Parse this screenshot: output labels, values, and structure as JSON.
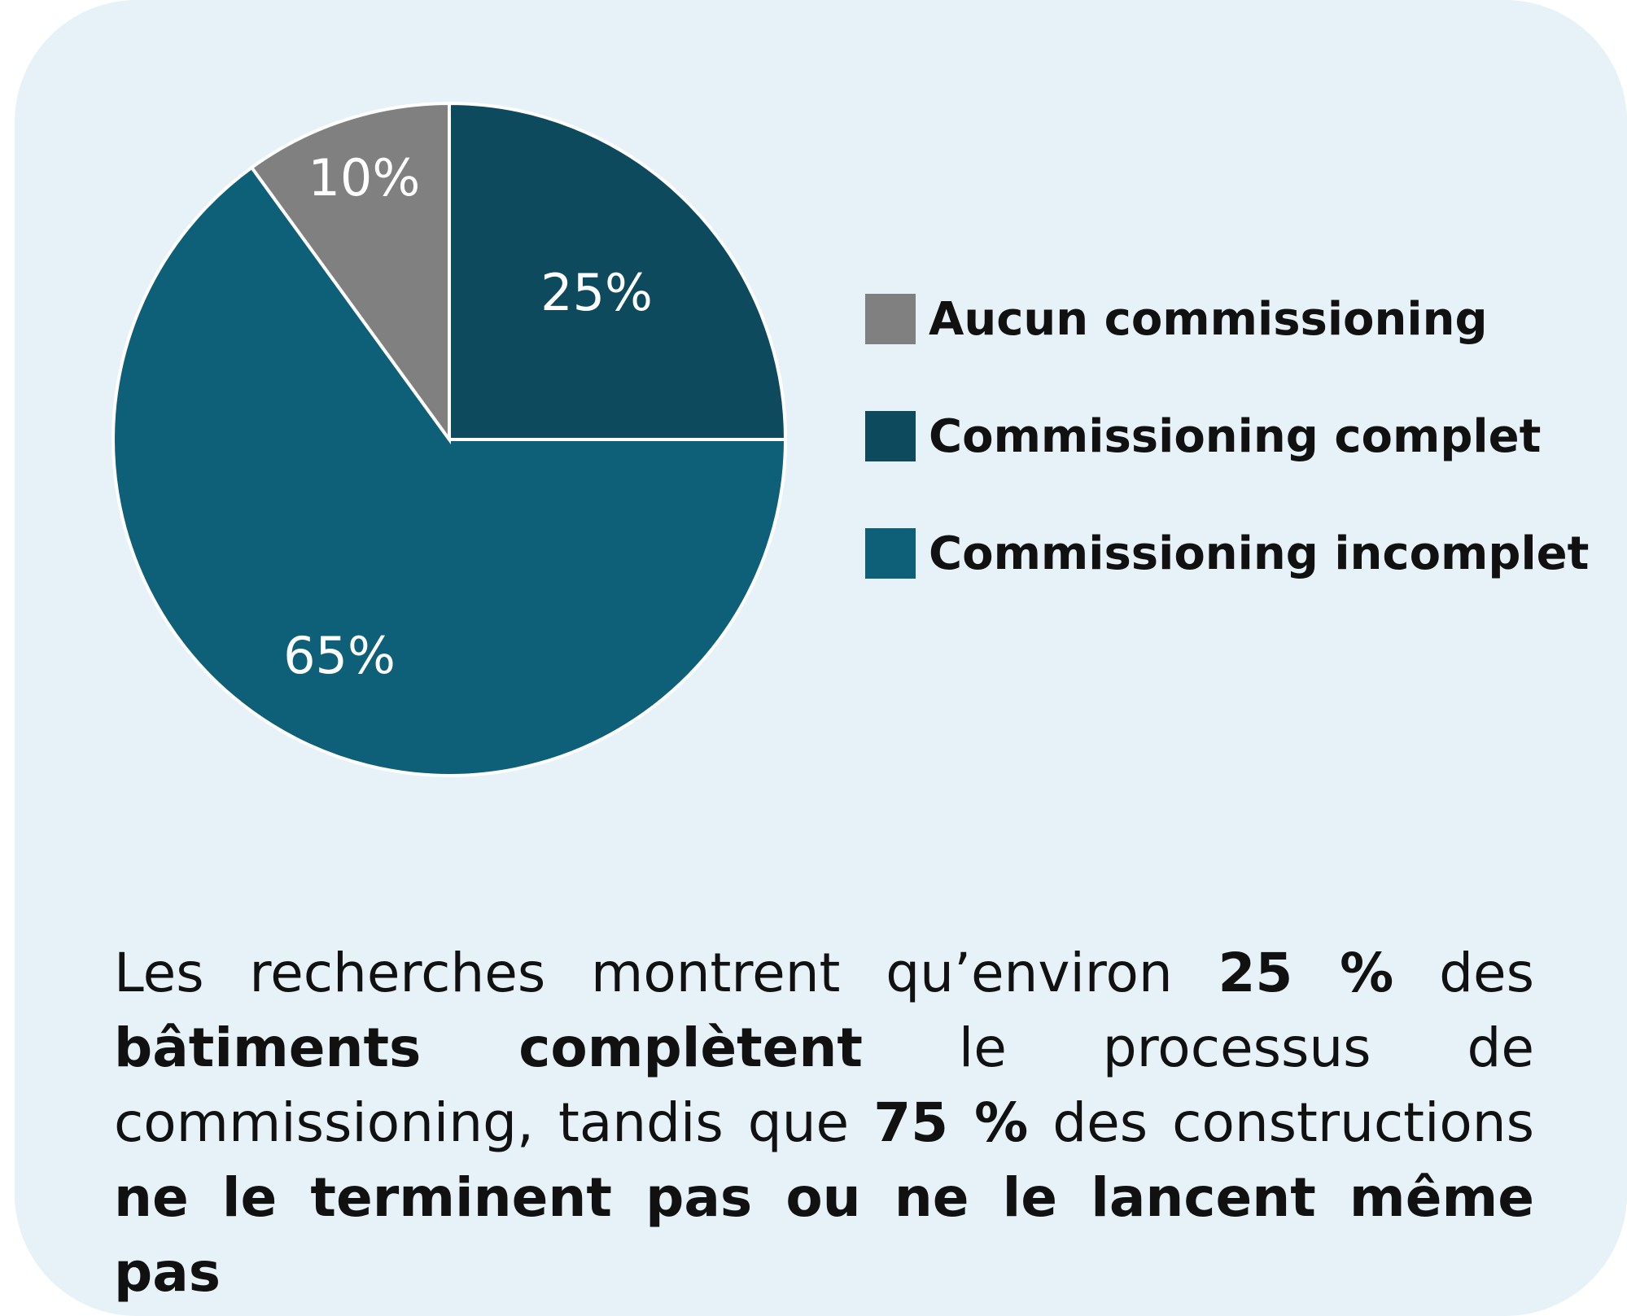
{
  "chart_data": {
    "type": "pie",
    "slices": [
      {
        "label": "Aucun commissioning",
        "value": 10,
        "value_label": "10%",
        "color": "#808080"
      },
      {
        "label": "Commissioning complet",
        "value": 25,
        "value_label": "25%",
        "color": "#0e4a5e"
      },
      {
        "label": "Commissioning incomplet",
        "value": 65,
        "value_label": "65%",
        "color": "#0e6078"
      }
    ],
    "legend_position": "right"
  },
  "caption": {
    "p1": "Les recherches montrent qu’environ ",
    "b1": "25 %",
    "p2": " des ",
    "b2": "bâtiments complètent",
    "p3": " le processus de commissioning, tandis que ",
    "b3": "75 %",
    "p4": " des constructions ",
    "b4": "ne le terminent pas ou ne le lancent même pas"
  }
}
